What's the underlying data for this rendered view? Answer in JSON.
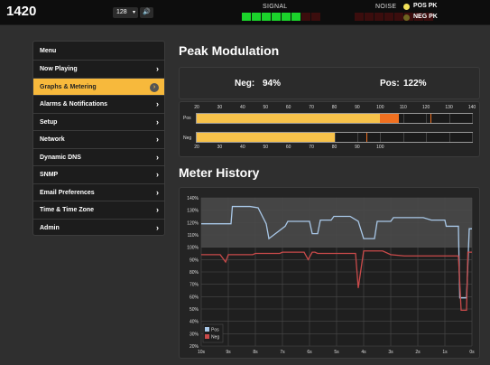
{
  "header": {
    "station": "1420",
    "channel": "128",
    "signal_label": "SIGNAL",
    "noise_label": "NOISE",
    "signal_level": 0.7,
    "noise_level": 0,
    "legend": [
      {
        "label": "POS PK",
        "color": "#f3e25a"
      },
      {
        "label": "NEG PK",
        "color": "#6f6420"
      }
    ]
  },
  "menu": {
    "title": "Menu",
    "items": [
      {
        "label": "Now Playing",
        "active": false
      },
      {
        "label": "Graphs & Metering",
        "active": true
      },
      {
        "label": "Alarms & Notifications",
        "active": false
      },
      {
        "label": "Setup",
        "active": false
      },
      {
        "label": "Network",
        "active": false
      },
      {
        "label": "Dynamic DNS",
        "active": false
      },
      {
        "label": "SNMP",
        "active": false
      },
      {
        "label": "Email Preferences",
        "active": false
      },
      {
        "label": "Time & Time Zone",
        "active": false
      },
      {
        "label": "Admin",
        "active": false
      }
    ]
  },
  "peak": {
    "title": "Peak Modulation",
    "neg_label": "Neg:",
    "neg_value": "94%",
    "pos_label": "Pos:",
    "pos_value": "122%",
    "pos_ticks": [
      "20",
      "30",
      "40",
      "50",
      "60",
      "70",
      "80",
      "90",
      "100",
      "110",
      "120",
      "130",
      "140"
    ],
    "neg_ticks": [
      "20",
      "30",
      "40",
      "50",
      "60",
      "70",
      "80",
      "90",
      "100"
    ],
    "pos_bar_label": "Pos",
    "neg_bar_label": "Neg",
    "pos_fill": 100,
    "pos_over": 108,
    "pos_peak": 122,
    "neg_fill": 80,
    "neg_peak": 94
  },
  "history": {
    "title": "Meter History",
    "chart_data": {
      "type": "line",
      "ylim": [
        20,
        140
      ],
      "y_ticks": [
        "140%",
        "130%",
        "120%",
        "110%",
        "100%",
        "90%",
        "80%",
        "70%",
        "60%",
        "50%",
        "40%",
        "30%",
        "20%"
      ],
      "x_ticks": [
        "10s",
        "9s",
        "8s",
        "7s",
        "6s",
        "5s",
        "4s",
        "3s",
        "2s",
        "1s",
        "0s"
      ],
      "series": [
        {
          "name": "Pos",
          "color": "#a9c8e8",
          "x": [
            10,
            8.9,
            8.85,
            8.2,
            7.9,
            7.6,
            7.5,
            6.9,
            6.8,
            6.0,
            5.9,
            5.7,
            5.6,
            5.2,
            5.1,
            4.5,
            4.2,
            4.0,
            3.6,
            3.5,
            3.0,
            2.9,
            1.8,
            1.5,
            1.0,
            0.95,
            0.5,
            0.45,
            0.2,
            0.1,
            0
          ],
          "y": [
            119,
            119,
            133,
            133,
            132,
            119,
            107,
            117,
            121,
            121,
            111,
            111,
            122,
            122,
            125,
            125,
            121,
            107,
            107,
            121,
            121,
            124,
            124,
            122,
            122,
            117,
            117,
            59,
            59,
            115,
            115
          ]
        },
        {
          "name": "Neg",
          "color": "#c94a4a",
          "x": [
            10,
            9.3,
            9.1,
            9.0,
            8.1,
            8.0,
            7.1,
            7.0,
            6.2,
            6.05,
            5.9,
            5.8,
            5.7,
            5.2,
            4.3,
            4.2,
            4.0,
            3.3,
            3.0,
            2.5,
            1.8,
            1.0,
            0.5,
            0.4,
            0.2,
            0.15,
            0
          ],
          "y": [
            94,
            94,
            88,
            94,
            94,
            95,
            95,
            96,
            96,
            90,
            96,
            96,
            95,
            95,
            95,
            67,
            97,
            97,
            94,
            93,
            93,
            93,
            93,
            49,
            49,
            96,
            96
          ]
        }
      ]
    }
  }
}
